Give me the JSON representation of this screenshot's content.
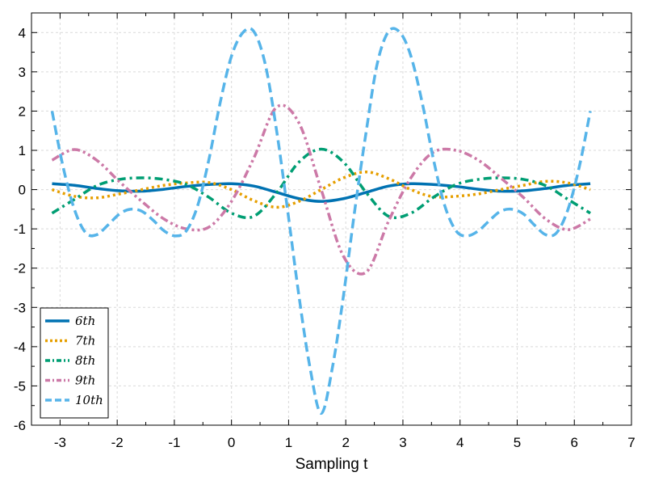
{
  "chart_data": {
    "type": "line",
    "title": "",
    "xlabel": "Sampling t",
    "ylabel": "",
    "xlim": [
      -3.5,
      7
    ],
    "ylim": [
      -6,
      4.5
    ],
    "xticks": [
      -3,
      -2,
      -1,
      0,
      1,
      2,
      3,
      4,
      5,
      6,
      7
    ],
    "yticks": [
      -6,
      -5,
      -4,
      -3,
      -2,
      -1,
      0,
      1,
      2,
      3,
      4
    ],
    "grid": true,
    "legend_position": "bottom-left",
    "series": [
      {
        "name": "6th",
        "style": "solid",
        "color": "#0072b2",
        "x": [
          -3.14,
          -2.75,
          -2.36,
          -1.96,
          -1.57,
          -1.18,
          -0.79,
          -0.39,
          0.0,
          0.39,
          0.79,
          1.18,
          1.57,
          1.96,
          2.36,
          2.75,
          3.14,
          3.53,
          3.93,
          4.32,
          4.71,
          5.11,
          5.5,
          5.89,
          6.28
        ],
        "y": [
          0.15,
          0.11,
          0.03,
          -0.03,
          -0.04,
          0.01,
          0.08,
          0.13,
          0.15,
          0.09,
          -0.07,
          -0.23,
          -0.3,
          -0.23,
          -0.07,
          0.09,
          0.15,
          0.13,
          0.08,
          0.01,
          -0.04,
          -0.03,
          0.03,
          0.11,
          0.15
        ]
      },
      {
        "name": "7th",
        "style": "dotted",
        "color": "#e69f00",
        "x": [
          -3.14,
          -2.75,
          -2.36,
          -1.96,
          -1.57,
          -1.18,
          -0.79,
          -0.39,
          0.0,
          0.39,
          0.79,
          1.18,
          1.57,
          1.96,
          2.36,
          2.75,
          3.14,
          3.53,
          3.93,
          4.32,
          4.71,
          5.11,
          5.5,
          5.89,
          6.28
        ],
        "y": [
          0.0,
          -0.17,
          -0.21,
          -0.11,
          0.0,
          0.11,
          0.17,
          0.18,
          0.0,
          -0.28,
          -0.45,
          -0.3,
          0.0,
          0.3,
          0.45,
          0.28,
          0.0,
          -0.18,
          -0.17,
          -0.11,
          0.0,
          0.11,
          0.21,
          0.17,
          0.0
        ]
      },
      {
        "name": "8th",
        "style": "dashdot",
        "color": "#009e73",
        "x": [
          -3.14,
          -2.75,
          -2.36,
          -1.96,
          -1.57,
          -1.18,
          -0.79,
          -0.39,
          0.0,
          0.39,
          0.79,
          1.18,
          1.57,
          1.96,
          2.36,
          2.75,
          3.14,
          3.53,
          3.93,
          4.32,
          4.71,
          5.11,
          5.5,
          5.89,
          6.28
        ],
        "y": [
          -0.6,
          -0.25,
          0.1,
          0.26,
          0.3,
          0.26,
          0.13,
          -0.2,
          -0.6,
          -0.68,
          -0.08,
          0.7,
          1.03,
          0.7,
          -0.08,
          -0.68,
          -0.6,
          -0.2,
          0.13,
          0.26,
          0.3,
          0.26,
          0.1,
          -0.25,
          -0.6
        ]
      },
      {
        "name": "9th",
        "style": "dashdotdot",
        "color": "#cc79a7",
        "x": [
          -3.14,
          -2.75,
          -2.36,
          -1.96,
          -1.57,
          -1.18,
          -0.79,
          -0.39,
          0.0,
          0.39,
          0.79,
          1.18,
          1.57,
          1.96,
          2.36,
          2.75,
          3.14,
          3.53,
          3.93,
          4.32,
          4.71,
          5.11,
          5.5,
          5.89,
          6.28
        ],
        "y": [
          0.75,
          1.02,
          0.75,
          0.2,
          -0.3,
          -0.75,
          -1.0,
          -0.95,
          -0.3,
          0.8,
          2.1,
          1.7,
          0.0,
          -1.7,
          -2.1,
          -0.8,
          0.3,
          0.95,
          1.0,
          0.75,
          0.3,
          -0.2,
          -0.75,
          -1.02,
          -0.75
        ]
      },
      {
        "name": "10th",
        "style": "dashed",
        "color": "#56b4e9",
        "x": [
          -3.14,
          -2.95,
          -2.75,
          -2.55,
          -2.36,
          -2.16,
          -1.96,
          -1.77,
          -1.57,
          -1.37,
          -1.18,
          -0.98,
          -0.79,
          -0.59,
          -0.39,
          -0.2,
          0.0,
          0.2,
          0.39,
          0.59,
          0.79,
          0.98,
          1.18,
          1.37,
          1.57,
          1.77,
          1.96,
          2.16,
          2.36,
          2.55,
          2.75,
          2.95,
          3.14,
          3.34,
          3.53,
          3.73,
          3.93,
          4.12,
          4.32,
          4.52,
          4.71,
          4.91,
          5.11,
          5.3,
          5.5,
          5.69,
          5.89,
          6.09,
          6.28
        ],
        "y": [
          2.0,
          0.6,
          -0.5,
          -1.1,
          -1.15,
          -0.9,
          -0.62,
          -0.5,
          -0.55,
          -0.78,
          -1.05,
          -1.18,
          -1.05,
          -0.4,
          0.8,
          2.2,
          3.4,
          4.0,
          4.03,
          3.2,
          1.5,
          -0.5,
          -2.7,
          -4.5,
          -5.7,
          -4.5,
          -2.7,
          -0.5,
          1.5,
          3.2,
          4.03,
          4.0,
          3.4,
          2.2,
          0.8,
          -0.4,
          -1.05,
          -1.18,
          -1.05,
          -0.78,
          -0.55,
          -0.5,
          -0.62,
          -0.9,
          -1.15,
          -1.1,
          -0.5,
          0.6,
          2.0
        ]
      }
    ]
  }
}
